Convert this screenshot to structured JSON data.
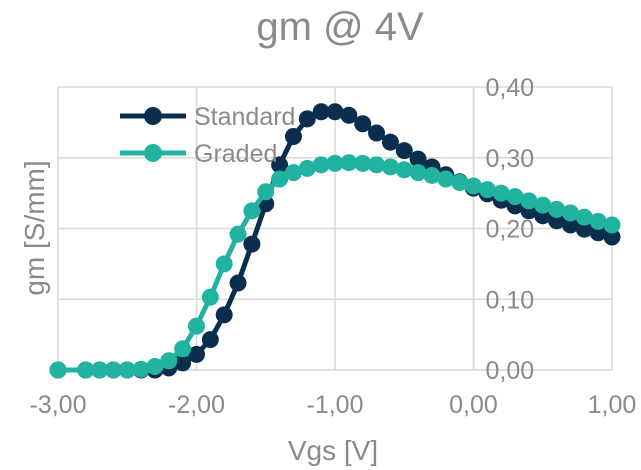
{
  "chart_data": {
    "type": "line",
    "title": "gm @ 4V",
    "xlabel": "Vgs [V]",
    "ylabel": "gm [S/mm]",
    "xlim": [
      -3,
      1
    ],
    "ylim": [
      0,
      0.4
    ],
    "x_ticks": [
      "-3,00",
      "-2,00",
      "-1,00",
      "0,00",
      "1,00"
    ],
    "y_ticks": [
      "0,00",
      "0,10",
      "0,20",
      "0,30",
      "0,40"
    ],
    "grid": true,
    "legend_position": "top-left",
    "series": [
      {
        "name": "Standard",
        "color": "#0b2e4f",
        "x": [
          -3.0,
          -2.8,
          -2.7,
          -2.6,
          -2.5,
          -2.4,
          -2.3,
          -2.2,
          -2.1,
          -2.0,
          -1.9,
          -1.8,
          -1.7,
          -1.6,
          -1.5,
          -1.4,
          -1.3,
          -1.2,
          -1.1,
          -1.0,
          -0.9,
          -0.8,
          -0.7,
          -0.6,
          -0.5,
          -0.4,
          -0.3,
          -0.2,
          -0.1,
          0.0,
          0.1,
          0.2,
          0.3,
          0.4,
          0.5,
          0.6,
          0.7,
          0.8,
          0.9,
          1.0
        ],
        "y": [
          0.0,
          0.0,
          0.0,
          0.0,
          0.0,
          0.0,
          0.0,
          0.003,
          0.01,
          0.022,
          0.043,
          0.078,
          0.123,
          0.178,
          0.235,
          0.29,
          0.33,
          0.355,
          0.365,
          0.365,
          0.36,
          0.348,
          0.335,
          0.322,
          0.31,
          0.298,
          0.287,
          0.276,
          0.266,
          0.257,
          0.249,
          0.24,
          0.232,
          0.225,
          0.218,
          0.211,
          0.205,
          0.199,
          0.194,
          0.188
        ]
      },
      {
        "name": "Graded",
        "color": "#22b2a0",
        "x": [
          -3.0,
          -2.8,
          -2.7,
          -2.6,
          -2.5,
          -2.4,
          -2.3,
          -2.2,
          -2.1,
          -2.0,
          -1.9,
          -1.8,
          -1.7,
          -1.6,
          -1.5,
          -1.4,
          -1.3,
          -1.2,
          -1.1,
          -1.0,
          -0.9,
          -0.8,
          -0.7,
          -0.6,
          -0.5,
          -0.4,
          -0.3,
          -0.2,
          -0.1,
          0.0,
          0.1,
          0.2,
          0.3,
          0.4,
          0.5,
          0.6,
          0.7,
          0.8,
          0.9,
          1.0
        ],
        "y": [
          0.0,
          0.0,
          0.0,
          0.0,
          0.0,
          0.001,
          0.005,
          0.013,
          0.03,
          0.062,
          0.103,
          0.15,
          0.192,
          0.225,
          0.252,
          0.27,
          0.279,
          0.285,
          0.29,
          0.292,
          0.293,
          0.292,
          0.29,
          0.287,
          0.283,
          0.279,
          0.275,
          0.27,
          0.265,
          0.26,
          0.255,
          0.25,
          0.245,
          0.239,
          0.233,
          0.227,
          0.222,
          0.216,
          0.21,
          0.205
        ]
      }
    ]
  }
}
